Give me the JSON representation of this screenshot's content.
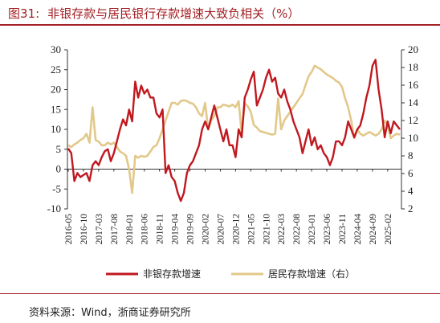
{
  "header": {
    "label": "图31:",
    "title": "非银存款与居民银行存款增速大致负相关（%）"
  },
  "footer": {
    "source": "资料来源：Wind，浙商证券研究所"
  },
  "chart_data": {
    "type": "line",
    "title": "非银存款与居民银行存款增速大致负相关（%）",
    "x_tick_labels": [
      "2016-05",
      "2016-10",
      "2017-03",
      "2017-08",
      "2018-01",
      "2018-06",
      "2018-11",
      "2019-04",
      "2019-09",
      "2020-02",
      "2020-07",
      "2020-12",
      "2021-05",
      "2021-10",
      "2022-03",
      "2022-08",
      "2023-01",
      "2023-06",
      "2023-11",
      "2024-04",
      "2024-09",
      "2025-02"
    ],
    "x_range": [
      "2016-05",
      "2025-06"
    ],
    "y_left": {
      "min": -10,
      "max": 30,
      "ticks": [
        -10,
        -5,
        0,
        5,
        10,
        15,
        20,
        25,
        30
      ]
    },
    "y_right": {
      "min": 2,
      "max": 20,
      "ticks": [
        2,
        4,
        6,
        8,
        10,
        12,
        14,
        16,
        18,
        20
      ]
    },
    "grid": false,
    "legend_position": "bottom",
    "series": [
      {
        "name": "非银存款增速",
        "axis": "left",
        "color": "#c0181f",
        "points": [
          [
            "2016-05",
            5.2
          ],
          [
            "2016-06",
            4
          ],
          [
            "2016-07",
            -3
          ],
          [
            "2016-08",
            -1
          ],
          [
            "2016-09",
            -2
          ],
          [
            "2016-10",
            -1.5
          ],
          [
            "2016-11",
            -1
          ],
          [
            "2016-12",
            -3
          ],
          [
            "2017-01",
            1
          ],
          [
            "2017-02",
            2
          ],
          [
            "2017-03",
            1
          ],
          [
            "2017-04",
            3
          ],
          [
            "2017-05",
            4.5
          ],
          [
            "2017-06",
            5
          ],
          [
            "2017-07",
            2
          ],
          [
            "2017-08",
            4
          ],
          [
            "2017-09",
            7
          ],
          [
            "2017-10",
            10
          ],
          [
            "2017-11",
            12.5
          ],
          [
            "2017-12",
            11
          ],
          [
            "2018-01",
            15
          ],
          [
            "2018-02",
            12
          ],
          [
            "2018-03",
            22
          ],
          [
            "2018-04",
            18
          ],
          [
            "2018-05",
            21
          ],
          [
            "2018-06",
            19
          ],
          [
            "2018-07",
            20
          ],
          [
            "2018-08",
            18
          ],
          [
            "2018-09",
            18
          ],
          [
            "2018-10",
            14
          ],
          [
            "2018-11",
            13
          ],
          [
            "2018-12",
            15
          ],
          [
            "2019-01",
            -1
          ],
          [
            "2019-02",
            1
          ],
          [
            "2019-03",
            -2
          ],
          [
            "2019-04",
            -3
          ],
          [
            "2019-05",
            -6
          ],
          [
            "2019-06",
            -8
          ],
          [
            "2019-07",
            -6
          ],
          [
            "2019-08",
            -1
          ],
          [
            "2019-09",
            1
          ],
          [
            "2019-10",
            2
          ],
          [
            "2019-11",
            4
          ],
          [
            "2019-12",
            6
          ],
          [
            "2020-01",
            10
          ],
          [
            "2020-02",
            12
          ],
          [
            "2020-03",
            10
          ],
          [
            "2020-04",
            13
          ],
          [
            "2020-05",
            16
          ],
          [
            "2020-06",
            13
          ],
          [
            "2020-07",
            10
          ],
          [
            "2020-08",
            7
          ],
          [
            "2020-09",
            10
          ],
          [
            "2020-10",
            6
          ],
          [
            "2020-11",
            6
          ],
          [
            "2020-12",
            3
          ],
          [
            "2021-01",
            10
          ],
          [
            "2021-02",
            8
          ],
          [
            "2021-03",
            18
          ],
          [
            "2021-04",
            20
          ],
          [
            "2021-05",
            22.5
          ],
          [
            "2021-06",
            24.5
          ],
          [
            "2021-07",
            16
          ],
          [
            "2021-08",
            18
          ],
          [
            "2021-09",
            20
          ],
          [
            "2021-10",
            23
          ],
          [
            "2021-11",
            25
          ],
          [
            "2021-12",
            22
          ],
          [
            "2022-01",
            23
          ],
          [
            "2022-02",
            19
          ],
          [
            "2022-03",
            18
          ],
          [
            "2022-04",
            20
          ],
          [
            "2022-05",
            17
          ],
          [
            "2022-06",
            15
          ],
          [
            "2022-07",
            12
          ],
          [
            "2022-08",
            10
          ],
          [
            "2022-09",
            8
          ],
          [
            "2022-10",
            4
          ],
          [
            "2022-11",
            7
          ],
          [
            "2022-12",
            10
          ],
          [
            "2023-01",
            6
          ],
          [
            "2023-02",
            8
          ],
          [
            "2023-03",
            5
          ],
          [
            "2023-04",
            6
          ],
          [
            "2023-05",
            4
          ],
          [
            "2023-06",
            3
          ],
          [
            "2023-07",
            1
          ],
          [
            "2023-08",
            3
          ],
          [
            "2023-09",
            7
          ],
          [
            "2023-10",
            7
          ],
          [
            "2023-11",
            6
          ],
          [
            "2023-12",
            8
          ],
          [
            "2024-01",
            12
          ],
          [
            "2024-02",
            10
          ],
          [
            "2024-03",
            8
          ],
          [
            "2024-04",
            10
          ],
          [
            "2024-05",
            11
          ],
          [
            "2024-06",
            14
          ],
          [
            "2024-07",
            18
          ],
          [
            "2024-08",
            21
          ],
          [
            "2024-09",
            26
          ],
          [
            "2024-10",
            27.5
          ],
          [
            "2024-11",
            20
          ],
          [
            "2024-12",
            15
          ],
          [
            "2025-01",
            8
          ],
          [
            "2025-02",
            12
          ],
          [
            "2025-03",
            9
          ],
          [
            "2025-04",
            12
          ],
          [
            "2025-05",
            11
          ],
          [
            "2025-06",
            10
          ]
        ]
      },
      {
        "name": "居民存款增速（右）",
        "axis": "right",
        "color": "#e2c88a",
        "points": [
          [
            "2016-05",
            9.2
          ],
          [
            "2016-06",
            9
          ],
          [
            "2016-07",
            9.3
          ],
          [
            "2016-08",
            9.5
          ],
          [
            "2016-09",
            9.8
          ],
          [
            "2016-10",
            10
          ],
          [
            "2016-11",
            10.5
          ],
          [
            "2016-12",
            9.5
          ],
          [
            "2017-01",
            13.5
          ],
          [
            "2017-02",
            9.8
          ],
          [
            "2017-03",
            9.6
          ],
          [
            "2017-04",
            9.2
          ],
          [
            "2017-05",
            9.2
          ],
          [
            "2017-06",
            9.5
          ],
          [
            "2017-07",
            9.3
          ],
          [
            "2017-08",
            9.5
          ],
          [
            "2017-09",
            9
          ],
          [
            "2017-10",
            8.5
          ],
          [
            "2017-11",
            8.3
          ],
          [
            "2017-12",
            8
          ],
          [
            "2018-01",
            6.5
          ],
          [
            "2018-02",
            3.8
          ],
          [
            "2018-03",
            8
          ],
          [
            "2018-04",
            7.8
          ],
          [
            "2018-05",
            8
          ],
          [
            "2018-06",
            7.9
          ],
          [
            "2018-07",
            8
          ],
          [
            "2018-08",
            8.5
          ],
          [
            "2018-09",
            9
          ],
          [
            "2018-10",
            9.2
          ],
          [
            "2018-11",
            10
          ],
          [
            "2018-12",
            11
          ],
          [
            "2019-01",
            12
          ],
          [
            "2019-02",
            13
          ],
          [
            "2019-03",
            14
          ],
          [
            "2019-04",
            14
          ],
          [
            "2019-05",
            13.8
          ],
          [
            "2019-06",
            14.2
          ],
          [
            "2019-07",
            14.3
          ],
          [
            "2019-08",
            14.2
          ],
          [
            "2019-09",
            14
          ],
          [
            "2019-10",
            13.9
          ],
          [
            "2019-11",
            13.5
          ],
          [
            "2019-12",
            12.8
          ],
          [
            "2020-01",
            12.5
          ],
          [
            "2020-02",
            14
          ],
          [
            "2020-03",
            11
          ],
          [
            "2020-04",
            12
          ],
          [
            "2020-05",
            12.5
          ],
          [
            "2020-06",
            13.5
          ],
          [
            "2020-07",
            13.5
          ],
          [
            "2020-08",
            13.8
          ],
          [
            "2020-09",
            13.7
          ],
          [
            "2020-10",
            13.6
          ],
          [
            "2020-11",
            13.8
          ],
          [
            "2020-12",
            13.5
          ],
          [
            "2021-01",
            14.2
          ],
          [
            "2021-02",
            10.5
          ],
          [
            "2021-03",
            14
          ],
          [
            "2021-04",
            13.6
          ],
          [
            "2021-05",
            13
          ],
          [
            "2021-06",
            11.5
          ],
          [
            "2021-07",
            11.2
          ],
          [
            "2021-08",
            10.8
          ],
          [
            "2021-09",
            10.7
          ],
          [
            "2021-10",
            10.6
          ],
          [
            "2021-11",
            10.5
          ],
          [
            "2021-12",
            10.4
          ],
          [
            "2022-01",
            10.5
          ],
          [
            "2022-02",
            14.5
          ],
          [
            "2022-03",
            11
          ],
          [
            "2022-04",
            12
          ],
          [
            "2022-05",
            12.5
          ],
          [
            "2022-06",
            13
          ],
          [
            "2022-07",
            13.5
          ],
          [
            "2022-08",
            14
          ],
          [
            "2022-09",
            14.5
          ],
          [
            "2022-10",
            15
          ],
          [
            "2022-11",
            16
          ],
          [
            "2022-12",
            17
          ],
          [
            "2023-01",
            17.5
          ],
          [
            "2023-02",
            18.2
          ],
          [
            "2023-03",
            18
          ],
          [
            "2023-04",
            17.8
          ],
          [
            "2023-05",
            17.5
          ],
          [
            "2023-06",
            17.2
          ],
          [
            "2023-07",
            17
          ],
          [
            "2023-08",
            16.8
          ],
          [
            "2023-09",
            16.5
          ],
          [
            "2023-10",
            16.3
          ],
          [
            "2023-11",
            15.8
          ],
          [
            "2023-12",
            14.5
          ],
          [
            "2024-01",
            13.5
          ],
          [
            "2024-02",
            12
          ],
          [
            "2024-03",
            10
          ],
          [
            "2024-04",
            11
          ],
          [
            "2024-05",
            10.5
          ],
          [
            "2024-06",
            10.3
          ],
          [
            "2024-07",
            10.5
          ],
          [
            "2024-08",
            10.7
          ],
          [
            "2024-09",
            10.5
          ],
          [
            "2024-10",
            10.3
          ],
          [
            "2024-11",
            10.5
          ],
          [
            "2024-12",
            11
          ],
          [
            "2025-01",
            12
          ],
          [
            "2025-02",
            11.5
          ],
          [
            "2025-03",
            10
          ],
          [
            "2025-04",
            10.3
          ],
          [
            "2025-05",
            10.5
          ],
          [
            "2025-06",
            10.4
          ]
        ]
      }
    ]
  }
}
